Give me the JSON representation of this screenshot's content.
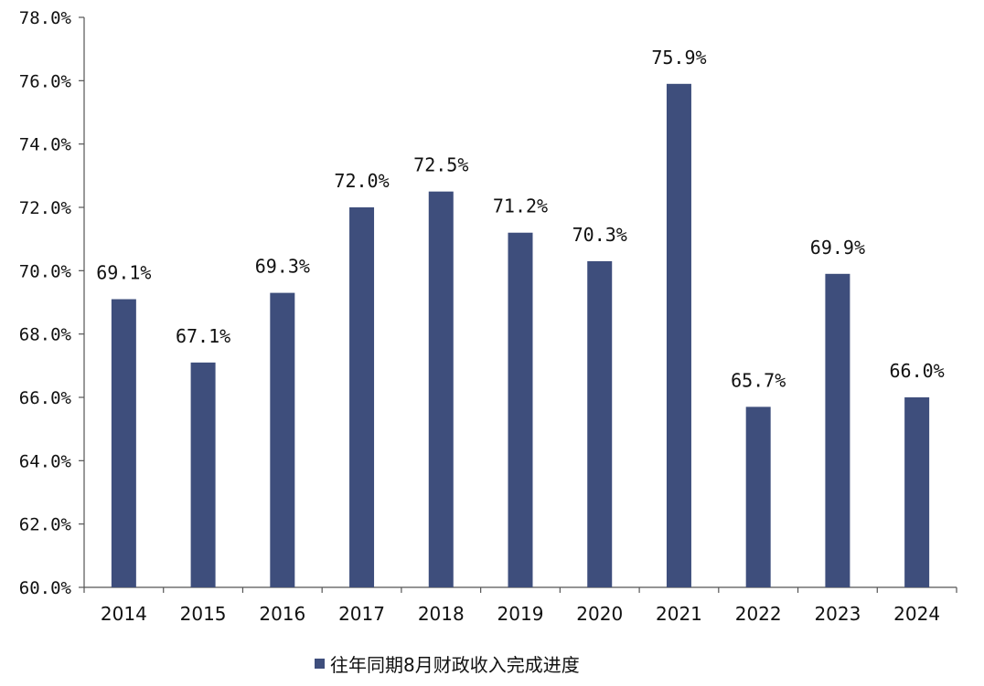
{
  "chart_data": {
    "type": "bar",
    "categories": [
      "2014",
      "2015",
      "2016",
      "2017",
      "2018",
      "2019",
      "2020",
      "2021",
      "2022",
      "2023",
      "2024"
    ],
    "series": [
      {
        "name": "往年同期8月财政收入完成进度",
        "values": [
          69.1,
          67.1,
          69.3,
          72.0,
          72.5,
          71.2,
          70.3,
          75.9,
          65.7,
          69.9,
          66.0
        ],
        "labels": [
          "69.1%",
          "67.1%",
          "69.3%",
          "72.0%",
          "72.5%",
          "71.2%",
          "70.3%",
          "75.9%",
          "65.7%",
          "69.9%",
          "66.0%"
        ]
      }
    ],
    "ylim": [
      60,
      78
    ],
    "yticks": [
      "60.0%",
      "62.0%",
      "64.0%",
      "66.0%",
      "68.0%",
      "70.0%",
      "72.0%",
      "74.0%",
      "76.0%",
      "78.0%"
    ],
    "grid": false,
    "legend_position": "bottom",
    "bar_color": "#3e4e7c"
  }
}
